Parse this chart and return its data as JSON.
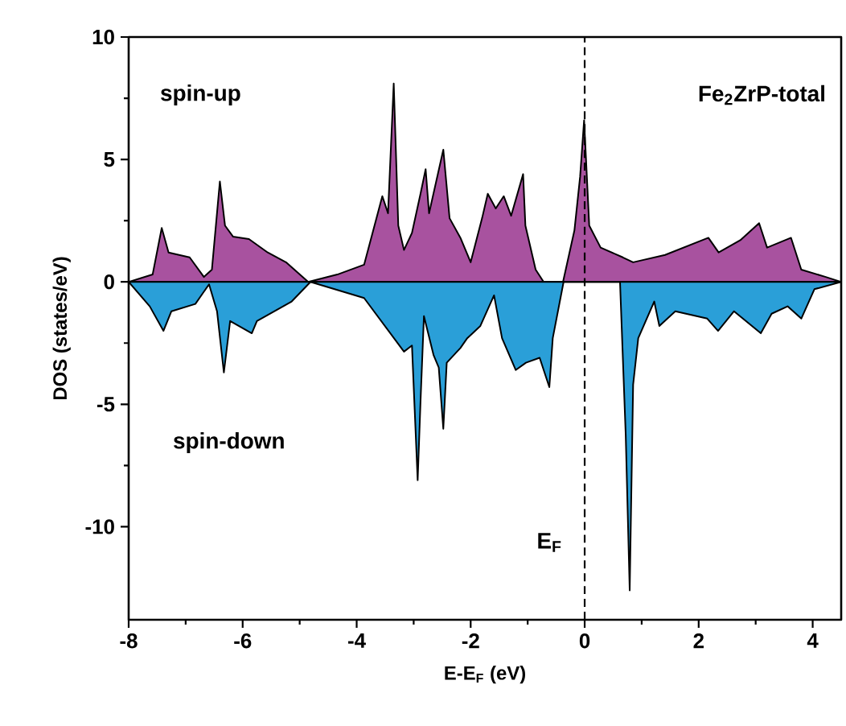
{
  "chart_data": {
    "type": "area",
    "xlabel": "E-E$_{F}$ (eV)",
    "ylabel": "DOS (states/eV)",
    "xlim": [
      -8,
      4.5
    ],
    "ylim": [
      -13.8,
      10
    ],
    "xticks": [
      -8,
      -6,
      -4,
      -2,
      0,
      2,
      4
    ],
    "yticks": [
      -10,
      -5,
      0,
      5,
      10
    ],
    "grid": false,
    "series": [
      {
        "color": "#a8529f",
        "x": [
          -8,
          -7.58,
          -7.42,
          -7.3,
          -6.93,
          -6.68,
          -6.54,
          -6.4,
          -6.31,
          -6.17,
          -5.89,
          -5.56,
          -5.24,
          -4.85,
          -4.34,
          -3.87,
          -3.55,
          -3.45,
          -3.35,
          -3.27,
          -3.17,
          -3.03,
          -2.88,
          -2.79,
          -2.73,
          -2.48,
          -2.37,
          -2.18,
          -2.0,
          -1.8,
          -1.7,
          -1.56,
          -1.42,
          -1.29,
          -1.08,
          -1.04,
          -0.86,
          -0.72,
          -0.38,
          -0.18,
          -0.08,
          -0.01,
          0.08,
          0.28,
          0.67,
          0.85,
          1.41,
          2.17,
          2.35,
          2.73,
          3.06,
          3.2,
          3.62,
          3.8,
          4.23,
          4.5
        ],
        "values": [
          0,
          0.3,
          2.2,
          1.2,
          1.0,
          0.2,
          0.5,
          4.1,
          2.3,
          1.85,
          1.75,
          1.2,
          0.8,
          0,
          0.3,
          0.7,
          3.5,
          2.8,
          8.1,
          2.3,
          1.3,
          2.0,
          3.6,
          4.6,
          2.8,
          5.4,
          2.6,
          1.8,
          0.8,
          2.6,
          3.6,
          3.0,
          3.5,
          2.7,
          4.4,
          2.3,
          0.5,
          0,
          0,
          2.1,
          4.3,
          6.6,
          2.3,
          1.4,
          1.0,
          0.8,
          1.1,
          1.8,
          1.2,
          1.7,
          2.4,
          1.4,
          1.8,
          0.5,
          0.2,
          0
        ]
      },
      {
        "color": "#2a9fd8",
        "x": [
          -8,
          -7.63,
          -7.39,
          -7.25,
          -6.83,
          -6.59,
          -6.45,
          -6.33,
          -6.22,
          -5.84,
          -5.75,
          -5.14,
          -4.81,
          -3.87,
          -3.17,
          -3.03,
          -2.93,
          -2.88,
          -2.82,
          -2.65,
          -2.56,
          -2.48,
          -2.42,
          -2.18,
          -2.06,
          -1.83,
          -1.59,
          -1.45,
          -1.21,
          -1.03,
          -0.79,
          -0.62,
          -0.56,
          -0.37,
          0.62,
          0.72,
          0.79,
          0.85,
          0.94,
          1.22,
          1.31,
          1.59,
          2.15,
          2.34,
          2.62,
          3.09,
          3.28,
          3.56,
          3.8,
          4.03,
          4.5
        ],
        "values": [
          0,
          -1.0,
          -2.0,
          -1.2,
          -0.9,
          -0.1,
          -1.2,
          -3.7,
          -1.6,
          -2.1,
          -1.6,
          -0.8,
          0,
          -0.66,
          -2.85,
          -2.6,
          -8.1,
          -4.9,
          -1.4,
          -3.0,
          -3.5,
          -6.0,
          -3.3,
          -2.7,
          -2.3,
          -1.8,
          -0.55,
          -2.3,
          -3.6,
          -3.3,
          -3.1,
          -4.3,
          -2.3,
          0,
          0,
          -6.25,
          -12.6,
          -4.2,
          -2.3,
          -0.8,
          -1.8,
          -1.2,
          -1.5,
          -2.0,
          -1.2,
          -2.1,
          -1.3,
          -1.0,
          -1.5,
          -0.3,
          0
        ]
      }
    ],
    "ref_lines": [
      {
        "axis": "x",
        "value": 0,
        "color": "#000000",
        "line_style": "dashed"
      }
    ],
    "annotations": [
      "spin-up",
      "spin-down",
      "Fe$_{2}$ZrP-total",
      "E$_{F}$"
    ]
  }
}
